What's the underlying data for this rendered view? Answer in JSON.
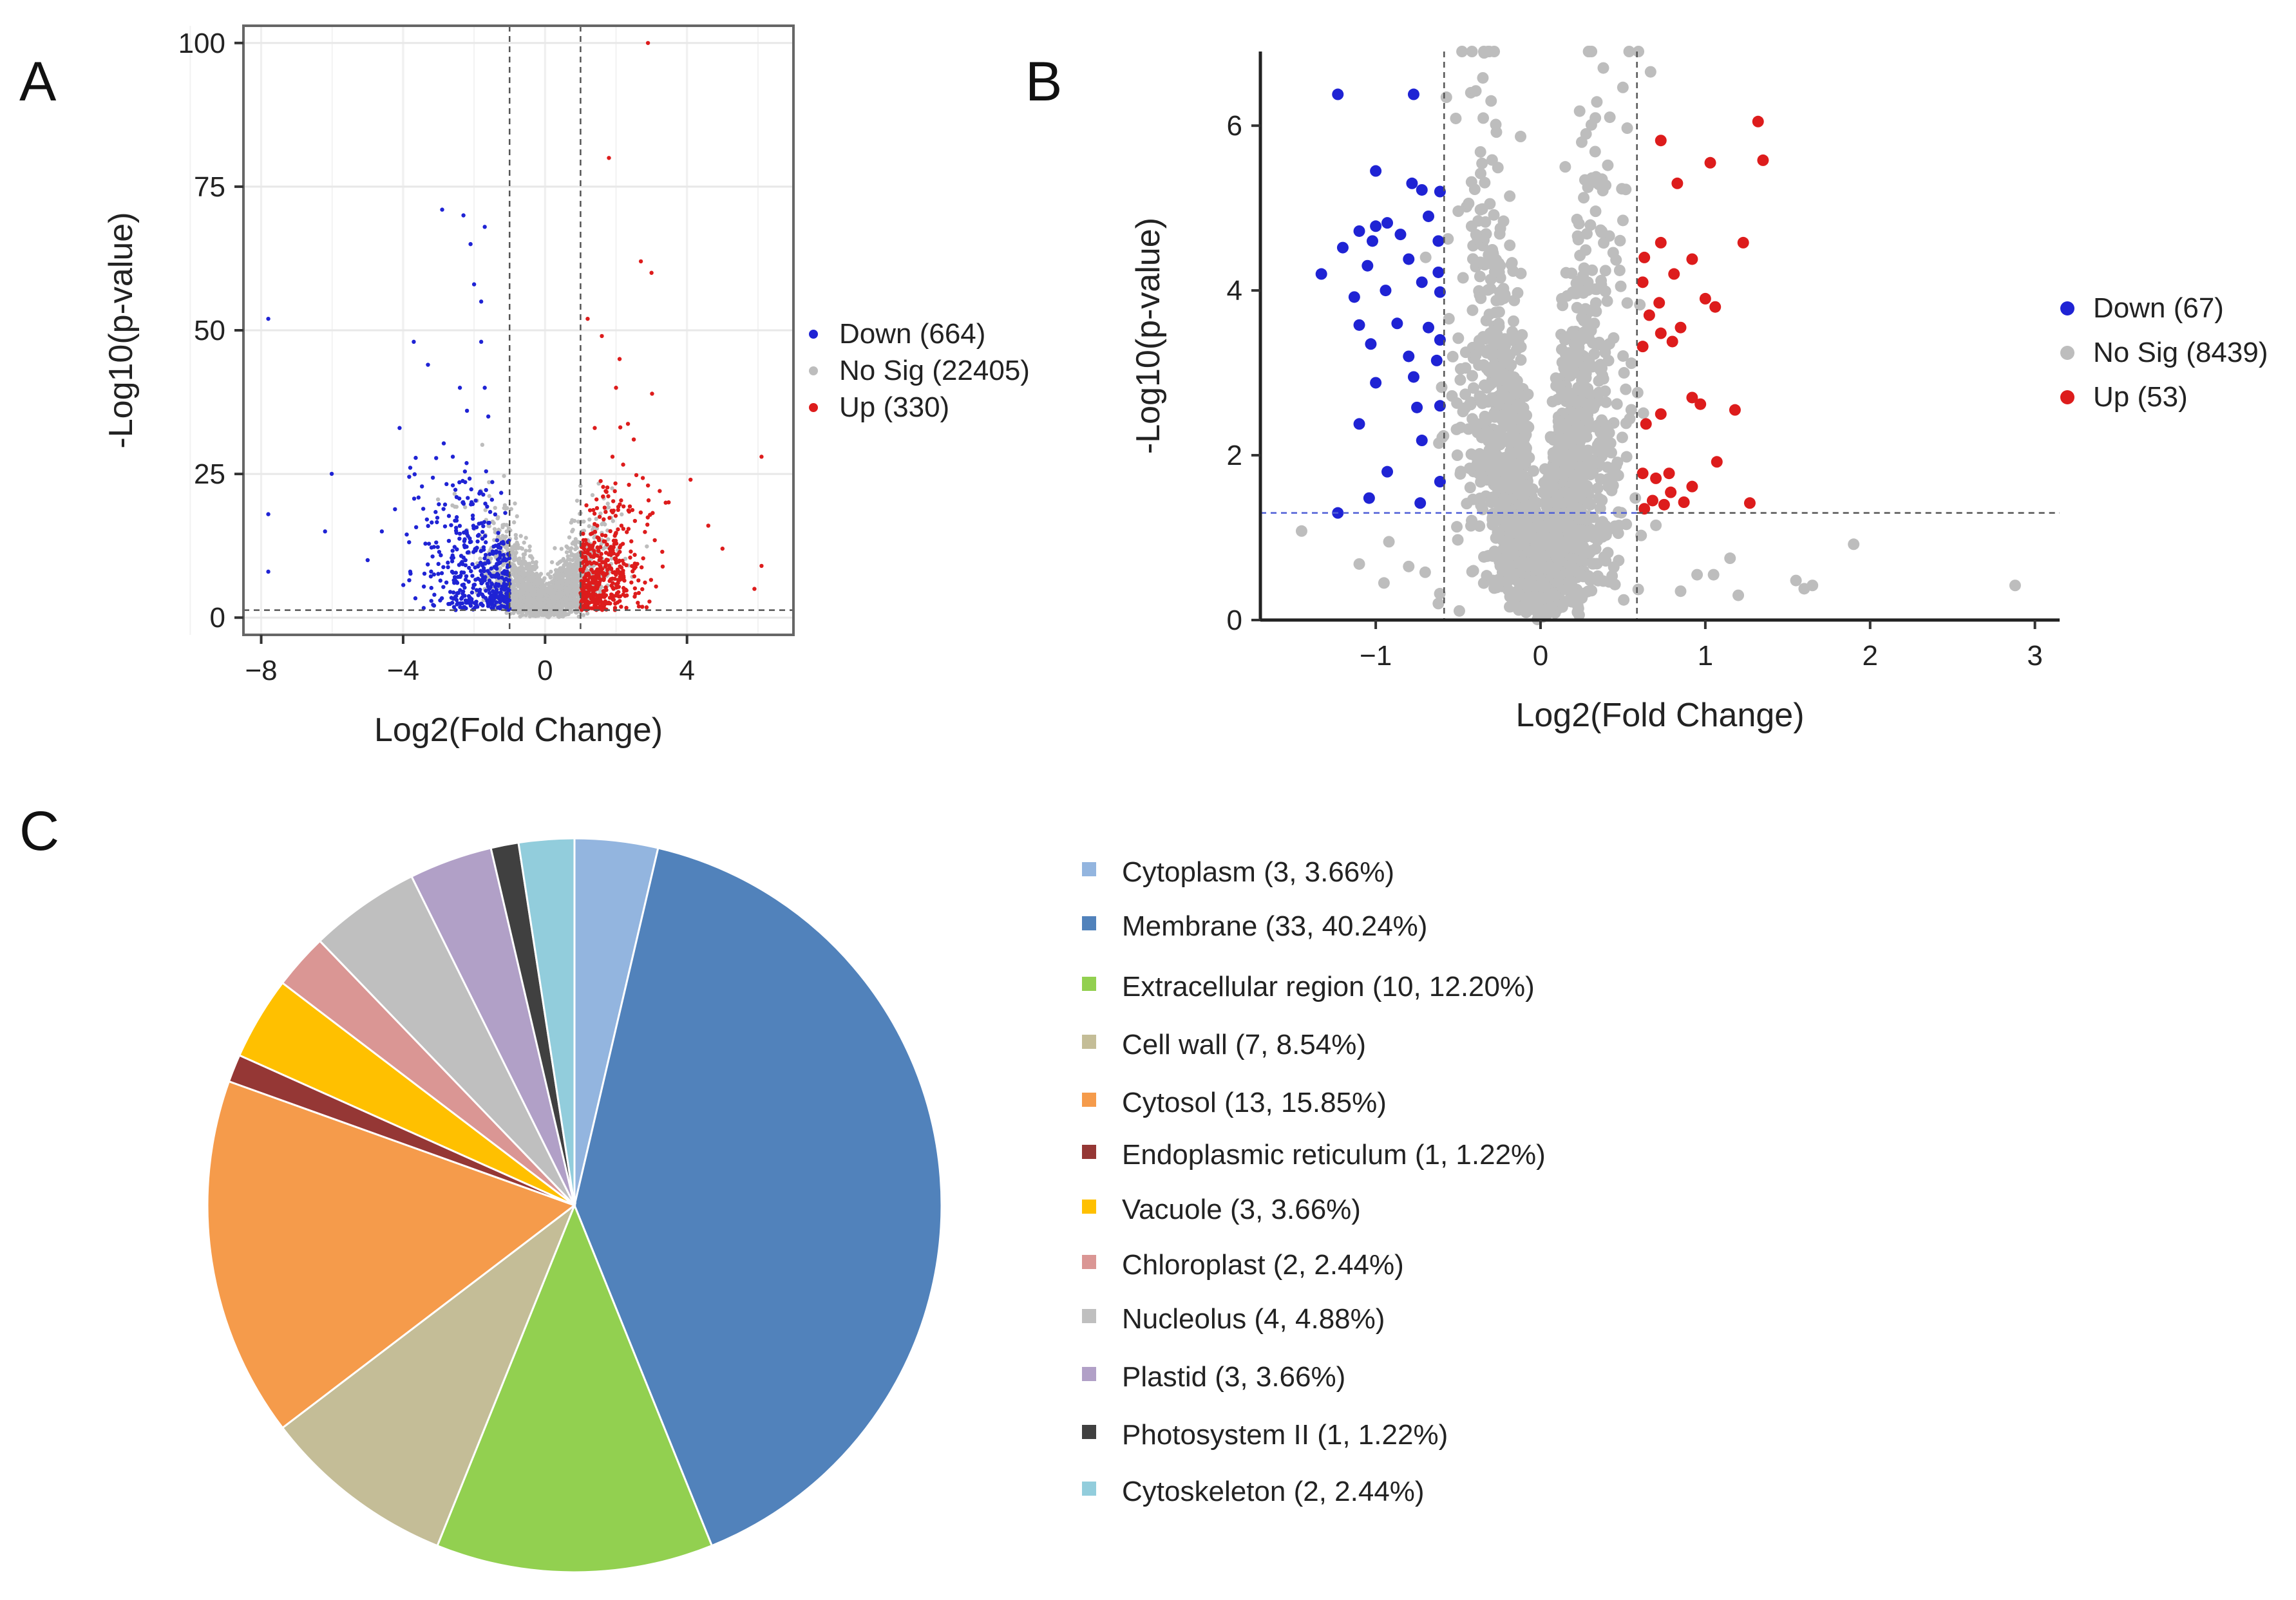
{
  "panels": {
    "a": {
      "letter": "A"
    },
    "b": {
      "letter": "B"
    },
    "c": {
      "letter": "C"
    }
  },
  "colors": {
    "down": "#1f23d4",
    "nosig": "#bdbdbd",
    "up": "#dd1c1c",
    "axis": "#333333",
    "grid": "#e8e8e8",
    "threshold": "#555555",
    "threshold_b_h": "#4f5fd6"
  },
  "chart_data": [
    {
      "id": "volcano_a",
      "type": "scatter",
      "title": "",
      "xlabel": "Log2(Fold Change)",
      "ylabel": "-Log10(p-value)",
      "xlim": [
        -8.5,
        7.0
      ],
      "ylim": [
        -3,
        103
      ],
      "xticks": [
        -8,
        -4,
        0,
        4
      ],
      "yticks": [
        0,
        25,
        50,
        75,
        100
      ],
      "xtick_labels": [
        "−8",
        "−4",
        "0",
        "4"
      ],
      "ytick_labels": [
        "0",
        "25",
        "50",
        "75",
        "100"
      ],
      "grid": true,
      "frame": "box",
      "thresholds": {
        "x": [
          -1,
          1
        ],
        "y": 1.3
      },
      "legend_position": "right",
      "series": [
        {
          "name": "Down",
          "label": "Down (664)",
          "count": 664,
          "color_key": "down"
        },
        {
          "name": "No Sig",
          "label": "No Sig (22405)",
          "count": 22405,
          "color_key": "nosig"
        },
        {
          "name": "Up",
          "label": "Up (330)",
          "count": 330,
          "color_key": "up"
        }
      ],
      "highlight_points": {
        "down": [
          [
            -7.8,
            52
          ],
          [
            -7.8,
            18
          ],
          [
            -7.8,
            8
          ],
          [
            -4.6,
            15
          ],
          [
            -4.1,
            33
          ],
          [
            -3.7,
            48
          ],
          [
            -2.9,
            71
          ],
          [
            -2.3,
            70
          ],
          [
            -2.1,
            65
          ],
          [
            -2.0,
            58
          ],
          [
            -1.8,
            55
          ],
          [
            -1.7,
            68
          ],
          [
            -1.8,
            48
          ],
          [
            -2.4,
            40
          ],
          [
            -3.3,
            44
          ],
          [
            -1.6,
            35
          ],
          [
            -2.6,
            28
          ],
          [
            -5.0,
            10
          ],
          [
            -6.2,
            15
          ],
          [
            -3.8,
            8
          ],
          [
            -1.7,
            40
          ],
          [
            -2.2,
            36
          ]
        ],
        "up": [
          [
            2.9,
            100
          ],
          [
            1.8,
            80
          ],
          [
            3.0,
            60
          ],
          [
            2.7,
            62
          ],
          [
            2.1,
            45
          ],
          [
            1.6,
            49
          ],
          [
            1.2,
            52
          ],
          [
            2.0,
            40
          ],
          [
            2.5,
            31
          ],
          [
            4.1,
            24
          ],
          [
            4.6,
            16
          ],
          [
            5.0,
            12
          ],
          [
            6.1,
            28
          ],
          [
            6.1,
            9
          ],
          [
            3.4,
            20
          ],
          [
            1.4,
            33
          ],
          [
            1.9,
            28
          ],
          [
            5.9,
            5
          ]
        ]
      }
    },
    {
      "id": "volcano_b",
      "type": "scatter",
      "title": "",
      "xlabel": "Log2(Fold Change)",
      "ylabel": "-Log10(p-value)",
      "xlim": [
        -1.7,
        3.15
      ],
      "ylim": [
        0,
        6.9
      ],
      "xticks": [
        -1,
        0,
        1,
        2,
        3
      ],
      "yticks": [
        0,
        2,
        4,
        6
      ],
      "xtick_labels": [
        "−1",
        "0",
        "1",
        "2",
        "3"
      ],
      "ytick_labels": [
        "0",
        "2",
        "4",
        "6"
      ],
      "grid": false,
      "frame": "left-bottom",
      "thresholds": {
        "x": [
          -0.585,
          0.585
        ],
        "y": 1.3
      },
      "legend_position": "right",
      "series": [
        {
          "name": "Down",
          "label": "Down (67)",
          "count": 67,
          "color_key": "down"
        },
        {
          "name": "No Sig",
          "label": "No Sig (8439)",
          "count": 8439,
          "color_key": "nosig"
        },
        {
          "name": "Up",
          "label": "Up (53)",
          "count": 53,
          "color_key": "up"
        }
      ],
      "highlight_points": {
        "down": [
          [
            -1.23,
            6.38
          ],
          [
            -0.77,
            6.38
          ],
          [
            -1.0,
            5.45
          ],
          [
            -0.72,
            5.22
          ],
          [
            -0.78,
            5.3
          ],
          [
            -0.61,
            5.2
          ],
          [
            -1.1,
            4.72
          ],
          [
            -1.0,
            4.78
          ],
          [
            -0.93,
            4.82
          ],
          [
            -0.68,
            4.9
          ],
          [
            -1.2,
            4.52
          ],
          [
            -1.02,
            4.6
          ],
          [
            -0.85,
            4.68
          ],
          [
            -0.62,
            4.6
          ],
          [
            -1.33,
            4.2
          ],
          [
            -1.05,
            4.3
          ],
          [
            -0.8,
            4.38
          ],
          [
            -0.62,
            4.22
          ],
          [
            -1.13,
            3.92
          ],
          [
            -0.94,
            4.0
          ],
          [
            -0.72,
            4.1
          ],
          [
            -0.61,
            3.98
          ],
          [
            -1.1,
            3.58
          ],
          [
            -0.87,
            3.6
          ],
          [
            -0.68,
            3.55
          ],
          [
            -0.61,
            3.4
          ],
          [
            -1.03,
            3.35
          ],
          [
            -0.8,
            3.2
          ],
          [
            -0.63,
            3.15
          ],
          [
            -1.0,
            2.88
          ],
          [
            -0.77,
            2.95
          ],
          [
            -0.61,
            2.6
          ],
          [
            -0.75,
            2.58
          ],
          [
            -1.1,
            2.38
          ],
          [
            -0.72,
            2.18
          ],
          [
            -0.93,
            1.8
          ],
          [
            -0.61,
            1.68
          ],
          [
            -1.04,
            1.48
          ],
          [
            -1.23,
            1.3
          ],
          [
            -0.73,
            1.42
          ]
        ],
        "up": [
          [
            1.32,
            6.05
          ],
          [
            0.73,
            5.82
          ],
          [
            1.35,
            5.58
          ],
          [
            1.03,
            5.55
          ],
          [
            0.83,
            5.3
          ],
          [
            1.23,
            4.58
          ],
          [
            0.73,
            4.58
          ],
          [
            0.92,
            4.38
          ],
          [
            0.63,
            4.4
          ],
          [
            0.81,
            4.2
          ],
          [
            0.62,
            4.1
          ],
          [
            1.0,
            3.9
          ],
          [
            1.06,
            3.8
          ],
          [
            0.72,
            3.85
          ],
          [
            0.66,
            3.7
          ],
          [
            0.85,
            3.55
          ],
          [
            0.73,
            3.48
          ],
          [
            0.62,
            3.32
          ],
          [
            0.8,
            3.38
          ],
          [
            0.92,
            2.7
          ],
          [
            0.97,
            2.62
          ],
          [
            1.18,
            2.55
          ],
          [
            0.73,
            2.5
          ],
          [
            0.64,
            2.38
          ],
          [
            1.07,
            1.92
          ],
          [
            0.78,
            1.78
          ],
          [
            0.62,
            1.78
          ],
          [
            0.7,
            1.72
          ],
          [
            0.79,
            1.55
          ],
          [
            0.92,
            1.62
          ],
          [
            0.68,
            1.45
          ],
          [
            0.75,
            1.4
          ],
          [
            0.87,
            1.43
          ],
          [
            1.27,
            1.42
          ],
          [
            0.63,
            1.35
          ]
        ],
        "nosig_outliers": [
          [
            -1.45,
            1.08
          ],
          [
            -0.92,
            0.95
          ],
          [
            -1.1,
            0.68
          ],
          [
            -0.95,
            0.45
          ],
          [
            -0.8,
            0.65
          ],
          [
            -0.7,
            0.58
          ],
          [
            1.15,
            0.75
          ],
          [
            1.05,
            0.55
          ],
          [
            0.95,
            0.55
          ],
          [
            0.85,
            0.35
          ],
          [
            1.2,
            0.3
          ],
          [
            1.55,
            0.48
          ],
          [
            1.6,
            0.38
          ],
          [
            1.65,
            0.42
          ],
          [
            1.9,
            0.92
          ],
          [
            2.88,
            0.42
          ],
          [
            0.7,
            1.15
          ],
          [
            -0.62,
            0.2
          ],
          [
            -0.35,
            6.58
          ],
          [
            -0.3,
            6.3
          ],
          [
            0.25,
            5.8
          ],
          [
            0.15,
            5.5
          ],
          [
            0.3,
            5.3
          ],
          [
            0.5,
            4.85
          ]
        ]
      }
    },
    {
      "id": "pie_c",
      "type": "pie",
      "title": "",
      "legend_position": "right",
      "slices": [
        {
          "label": "Cytoplasm (3, 3.66%)",
          "name": "Cytoplasm",
          "count": 3,
          "percent": 3.66,
          "color": "#93b5df"
        },
        {
          "label": "Membrane (33, 40.24%)",
          "name": "Membrane",
          "count": 33,
          "percent": 40.24,
          "color": "#5182bb"
        },
        {
          "label": "Extracellular region (10, 12.20%)",
          "name": "Extracellular region",
          "count": 10,
          "percent": 12.2,
          "color": "#92d050"
        },
        {
          "label": "Cell wall (7, 8.54%)",
          "name": "Cell wall",
          "count": 7,
          "percent": 8.54,
          "color": "#c4bd97"
        },
        {
          "label": "Cytosol (13, 15.85%)",
          "name": "Cytosol",
          "count": 13,
          "percent": 15.85,
          "color": "#f59b4b"
        },
        {
          "label": "Endoplasmic reticulum (1, 1.22%)",
          "name": "Endoplasmic reticulum",
          "count": 1,
          "percent": 1.22,
          "color": "#953735"
        },
        {
          "label": "Vacuole (3, 3.66%)",
          "name": "Vacuole",
          "count": 3,
          "percent": 3.66,
          "color": "#ffc000"
        },
        {
          "label": "Chloroplast (2, 2.44%)",
          "name": "Chloroplast",
          "count": 2,
          "percent": 2.44,
          "color": "#da9694"
        },
        {
          "label": "Nucleolus (4, 4.88%)",
          "name": "Nucleolus",
          "count": 4,
          "percent": 4.88,
          "color": "#bfbfbf"
        },
        {
          "label": "Plastid (3, 3.66%)",
          "name": "Plastid",
          "count": 3,
          "percent": 3.66,
          "color": "#b1a0c7"
        },
        {
          "label": "Photosystem II (1, 1.22%)",
          "name": "Photosystem II",
          "count": 1,
          "percent": 1.22,
          "color": "#404040"
        },
        {
          "label": "Cytoskeleton (2, 2.44%)",
          "name": "Cytoskeleton",
          "count": 2,
          "percent": 2.44,
          "color": "#92cddc"
        }
      ]
    }
  ]
}
